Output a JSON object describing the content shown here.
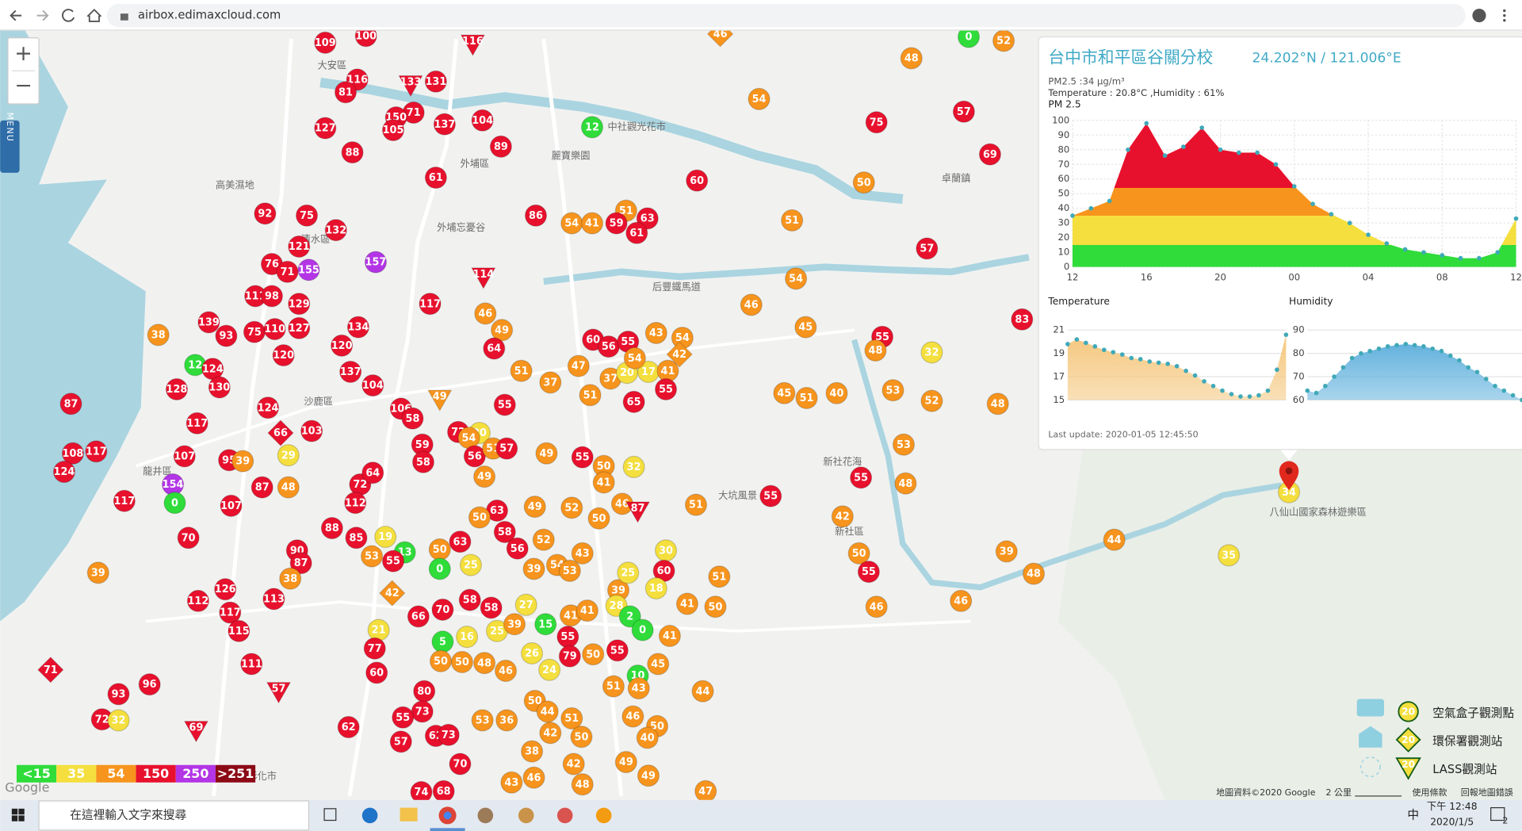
{
  "browser": {
    "url": "airbox.edimaxcloud.com"
  },
  "map": {
    "zoom_in": "+",
    "zoom_out": "−",
    "menu": "MENU",
    "place_labels": [
      "大安區",
      "外埔區",
      "清水區",
      "沙鹿區",
      "龍井區",
      "大坑風景",
      "新社區",
      "卓蘭鎮",
      "中社觀光花市",
      "麗寶樂園",
      "外埔忘憂谷",
      "高美濕地",
      "后豐鐵馬道",
      "新社花海",
      "八仙山國家森林遊樂區",
      "彰化市"
    ],
    "markers": [
      109,
      100,
      116,
      116,
      81,
      133,
      131,
      71,
      150,
      105,
      137,
      104,
      127,
      88,
      89,
      61,
      12,
      46,
      0,
      52,
      48,
      54,
      75,
      57,
      69,
      60,
      50,
      51,
      92,
      75,
      132,
      121,
      157,
      76,
      71,
      155,
      86,
      54,
      41,
      51,
      63,
      59,
      61,
      57,
      114,
      111,
      98,
      129,
      117,
      139,
      93,
      75,
      110,
      127,
      134,
      120,
      38,
      120,
      46,
      49,
      64,
      54,
      46,
      45,
      55,
      83,
      32,
      48,
      60,
      56,
      55,
      43,
      54,
      42,
      47,
      51,
      37,
      37,
      20,
      17,
      41,
      54,
      137,
      104,
      12,
      124,
      128,
      130,
      87,
      117,
      124,
      66,
      103,
      51,
      65,
      55,
      55,
      49,
      106,
      58,
      45,
      51,
      40,
      53,
      52,
      48,
      59,
      72,
      20,
      54,
      56,
      51,
      57,
      49,
      55,
      50,
      108,
      117,
      107,
      95,
      39,
      29,
      58,
      49,
      41,
      32,
      124,
      154,
      0,
      87,
      48,
      72,
      64,
      112,
      107,
      117,
      63,
      49,
      52,
      50,
      46,
      87,
      51,
      55,
      55,
      48,
      42,
      53,
      50,
      88,
      85,
      19,
      13,
      55,
      53,
      90,
      87,
      70,
      63,
      58,
      56,
      52,
      43,
      30,
      60,
      50,
      0,
      25,
      39,
      38,
      42,
      39,
      54,
      53,
      39,
      25,
      18,
      41,
      50,
      51,
      50,
      55,
      39,
      48,
      44,
      35,
      46,
      46,
      112,
      126,
      113,
      117,
      115,
      66,
      70,
      58,
      58,
      27,
      15,
      41,
      41,
      28,
      2,
      41,
      0,
      5,
      16,
      25,
      39,
      21,
      77,
      60,
      111,
      71,
      57,
      96,
      93,
      72,
      32,
      69,
      55,
      55,
      50,
      79,
      50,
      50,
      48,
      46,
      26,
      24,
      10,
      45,
      80,
      73,
      55,
      62,
      73,
      57,
      62,
      53,
      36,
      50,
      44,
      42,
      51,
      50,
      51,
      43,
      44,
      46,
      50,
      40,
      38,
      70,
      42,
      48,
      49,
      49,
      43,
      46,
      74,
      68,
      47,
      34
    ],
    "legend": [
      {
        "label": "<15",
        "value": 15,
        "color": "#2fdc3a"
      },
      {
        "label": "35",
        "value": 35,
        "color": "#f4df3e"
      },
      {
        "label": "54",
        "value": 54,
        "color": "#f7941d"
      },
      {
        "label": "150",
        "value": 150,
        "color": "#e8112d"
      },
      {
        "label": "250",
        "value": 250,
        "color": "#b335e6"
      },
      {
        "label": ">251",
        "value": 251,
        "color": "#8c0a16"
      }
    ],
    "station_legend": [
      {
        "label": "空氣盒子觀測點",
        "value": 20
      },
      {
        "label": "環保署觀測站",
        "value": 20
      },
      {
        "label": "LASS觀測站",
        "value": 20
      }
    ],
    "google": "Google",
    "attribution": "地圖資料©2020 Google",
    "scale": "2 公里",
    "terms": "使用條款",
    "report": "回報地圖錯誤"
  },
  "popup": {
    "title": "台中市和平區谷關分校",
    "coords": "24.202°N / 121.006°E",
    "pm_line": "PM2.5 :34 μg/m³",
    "th_line": "Temperature : 20.8°C ,Humidity : 61%",
    "last_update": "Last update: 2020-01-05 12:45:50"
  },
  "chart_data": [
    {
      "type": "area",
      "title": "PM 2.5",
      "color": "#3fa9b8",
      "x": [
        12,
        13,
        14,
        15,
        16,
        17,
        18,
        19,
        20,
        21,
        22,
        23,
        24,
        25,
        26,
        27,
        28,
        29,
        30,
        31,
        32,
        33,
        34,
        35,
        36
      ],
      "values": [
        35,
        40,
        45,
        80,
        98,
        76,
        82,
        95,
        80,
        78,
        78,
        70,
        55,
        43,
        36,
        30,
        22,
        16,
        12,
        10,
        8,
        6,
        6,
        10,
        33
      ],
      "xlim": [
        12,
        36
      ],
      "xticks": [
        12,
        16,
        20,
        {
          "value": 24,
          "label": "00"
        },
        {
          "value": 28,
          "label": "04"
        },
        {
          "value": 32,
          "label": "08"
        },
        {
          "value": 36,
          "label": "12"
        }
      ],
      "ylim": [
        0,
        100
      ],
      "yticks": [
        0,
        10,
        20,
        30,
        40,
        50,
        60,
        70,
        80,
        90,
        100
      ],
      "grid": true
    },
    {
      "type": "area",
      "title": "Temperature",
      "color": "#3fa9b8",
      "fill": "#f5c77e",
      "x": [
        12,
        13,
        14,
        15,
        16,
        17,
        18,
        19,
        20,
        21,
        22,
        23,
        24,
        25,
        26,
        27,
        28,
        29,
        30,
        31,
        32,
        33,
        34,
        35,
        36
      ],
      "values": [
        19.8,
        20.2,
        19.9,
        19.6,
        19.3,
        19.1,
        18.9,
        18.6,
        18.5,
        18.3,
        18.2,
        18.1,
        17.9,
        17.5,
        17.1,
        16.6,
        16.2,
        15.8,
        15.5,
        15.3,
        15.3,
        15.4,
        15.8,
        17.6,
        20.6
      ],
      "xlim": [
        12,
        36
      ],
      "ylim": [
        15,
        21
      ],
      "yticks": [
        15,
        17,
        19,
        21
      ]
    },
    {
      "type": "area",
      "title": "Humidity",
      "color": "#3fa9b8",
      "fill": "#64b2dd",
      "x": [
        12,
        13,
        14,
        15,
        16,
        17,
        18,
        19,
        20,
        21,
        22,
        23,
        24,
        25,
        26,
        27,
        28,
        29,
        30,
        31,
        32,
        33,
        34,
        35,
        36
      ],
      "values": [
        64,
        63,
        66,
        70,
        74,
        78,
        80,
        81,
        82,
        83,
        83.5,
        84,
        83.5,
        83,
        82,
        81,
        79,
        77,
        74,
        72,
        69,
        66,
        64,
        62,
        60
      ],
      "xlim": [
        12,
        36
      ],
      "ylim": [
        60,
        90
      ],
      "yticks": [
        60,
        70,
        80,
        90
      ]
    }
  ],
  "taskbar": {
    "search": "在這裡輸入文字來搜尋",
    "ime": "中",
    "time": "下午 12:48",
    "date": "2020/1/5",
    "notifications": "2"
  }
}
